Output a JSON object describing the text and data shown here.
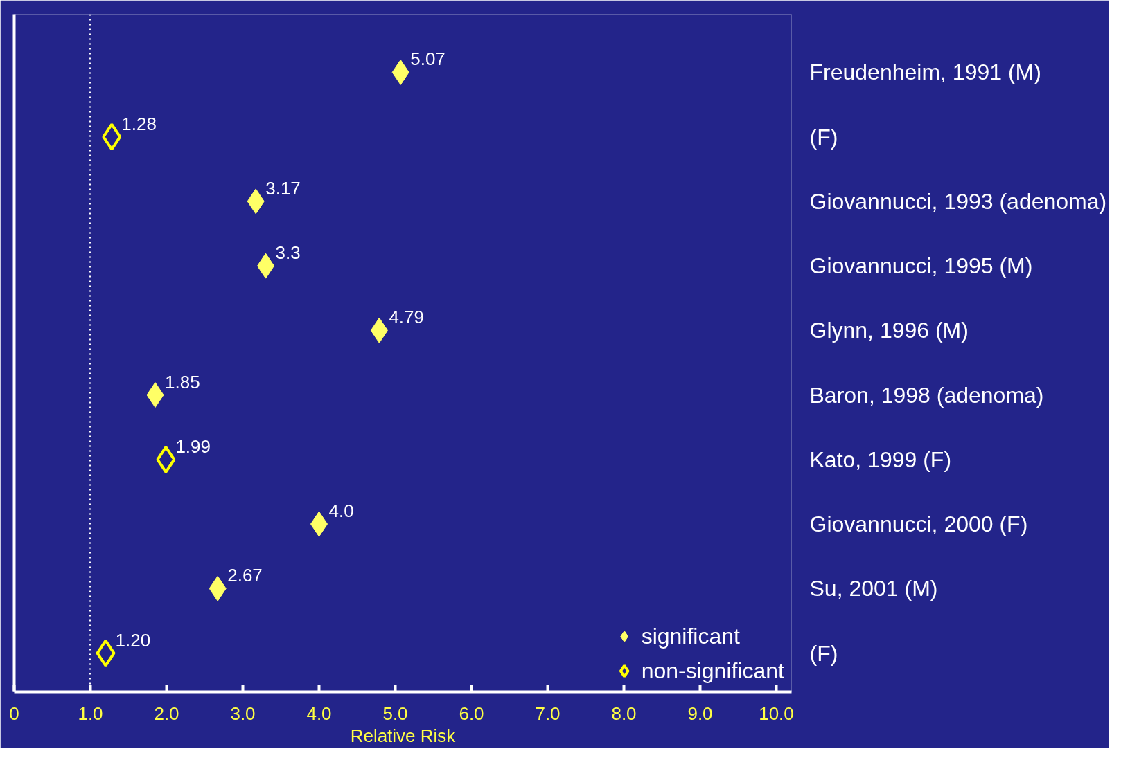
{
  "chart_data": {
    "type": "scatter",
    "orientation": "horizontal",
    "xlabel": "Relative Risk",
    "categories": [
      "Freudenheim, 1991 (M)",
      "(F)",
      "Giovannucci, 1993 (adenoma)",
      "Giovannucci, 1995 (M)",
      "Glynn, 1996 (M)",
      "Baron, 1998 (adenoma)",
      "Kato, 1999 (F)",
      "Giovannucci, 2000 (F)",
      "Su, 2001  (M)",
      "(F)"
    ],
    "series": [
      {
        "name": "significant",
        "color": "#ffff66",
        "values": [
          5.07,
          null,
          3.17,
          3.3,
          4.79,
          1.85,
          null,
          4.0,
          2.67,
          null
        ],
        "value_labels": [
          "5.07",
          null,
          "3.17",
          "3.3",
          "4.79",
          "1.85",
          null,
          "4.0",
          "2.67",
          null
        ]
      },
      {
        "name": "non-significant",
        "color": "#ffff00",
        "values": [
          null,
          1.28,
          null,
          null,
          null,
          null,
          1.99,
          null,
          null,
          1.2
        ],
        "value_labels": [
          null,
          "1.28",
          null,
          null,
          null,
          null,
          "1.99",
          null,
          null,
          "1.20"
        ]
      }
    ],
    "xlim": [
      0,
      10.2
    ],
    "xticks": [
      0,
      {
        "value": 1,
        "label": "1.0"
      },
      {
        "value": 2,
        "label": "2.0"
      },
      {
        "value": 3,
        "label": "3.0"
      },
      {
        "value": 4,
        "label": "4.0"
      },
      {
        "value": 5,
        "label": "5.0"
      },
      {
        "value": 6,
        "label": "6.0"
      },
      {
        "value": 7,
        "label": "7.0"
      },
      {
        "value": 8,
        "label": "8.0"
      },
      {
        "value": 9,
        "label": "9.0"
      },
      {
        "value": 10,
        "label": "10.0"
      }
    ],
    "ref_lines": [
      {
        "axis": "x",
        "value": 1,
        "label": null,
        "color": "#ffffff",
        "line_style": "dotted"
      }
    ],
    "marker": "diamond",
    "grid": false,
    "legend": "bottom right"
  }
}
